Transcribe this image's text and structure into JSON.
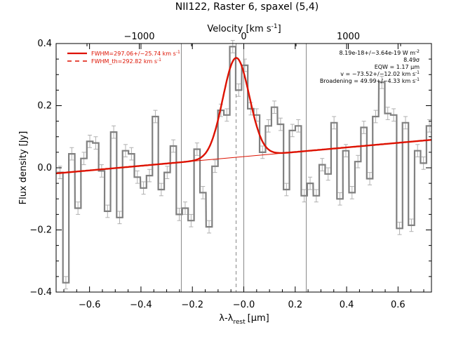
{
  "chart_data": {
    "type": "line",
    "title": "NII122, Raster 6, spaxel (5,4)",
    "xlabel": "λ-λ",
    "xlabel_sub": "rest",
    "xlabel_unit": "[μm]",
    "ylabel": "Flux density [Jy]",
    "top_axis_label": "Velocity [km s",
    "top_axis_label_sup": "-1",
    "top_axis_label_end": "]",
    "xlim": [
      -0.73,
      0.73
    ],
    "ylim": [
      -0.4,
      0.4
    ],
    "x_ticks": [
      -0.6,
      -0.4,
      -0.2,
      0.0,
      0.2,
      0.4,
      0.6
    ],
    "x_tick_labels": [
      "−0.6",
      "−0.4",
      "−0.2",
      "−0.0",
      "0.2",
      "0.4",
      "0.6"
    ],
    "y_ticks": [
      -0.4,
      -0.2,
      0.0,
      0.2,
      0.4
    ],
    "y_tick_labels": [
      "−0.4",
      "−0.2",
      "0.0",
      "0.2",
      "0.4"
    ],
    "top_ticks_velocity": [
      -1000,
      0,
      1000
    ],
    "top_tick_labels": [
      "−1000",
      "0",
      "1000"
    ],
    "top_axis_rest_wavelength_um": 121.9,
    "vertical_lines_x": [
      -0.243,
      0.243
    ],
    "center_dashed_x": -0.03,
    "zero_line_x": 0.0,
    "legend": {
      "position": "top-left",
      "entries": [
        {
          "label": "FWHM=297.06+/−25.74 km s",
          "sup": "-1",
          "style": "solid",
          "color": "#dd1100"
        },
        {
          "label": "FWHM_th=292.82 km s",
          "sup": "-1",
          "style": "dashed",
          "color": "#dd1100"
        }
      ]
    },
    "annotations": [
      {
        "text": "8.19e-18+/−3.64e-19 W m",
        "sup": "-2"
      },
      {
        "text": "8.49σ",
        "sup": ""
      },
      {
        "text": "EQW = 1.17 μm",
        "sup": ""
      },
      {
        "text": "v = −73.52+/−12.02 km s",
        "sup": "-1"
      },
      {
        "text": "Broadening = 49.99+/−4.33 km s",
        "sup": "-1"
      }
    ],
    "spectrum": {
      "name": "data",
      "color": "#808080",
      "bin_width": 0.0232,
      "x": [
        -0.715,
        -0.692,
        -0.669,
        -0.645,
        -0.622,
        -0.599,
        -0.576,
        -0.553,
        -0.53,
        -0.506,
        -0.483,
        -0.46,
        -0.437,
        -0.414,
        -0.39,
        -0.367,
        -0.344,
        -0.321,
        -0.298,
        -0.274,
        -0.251,
        -0.228,
        -0.205,
        -0.182,
        -0.159,
        -0.135,
        -0.112,
        -0.089,
        -0.066,
        -0.043,
        -0.02,
        0.004,
        0.027,
        0.05,
        0.073,
        0.096,
        0.119,
        0.143,
        0.166,
        0.189,
        0.212,
        0.235,
        0.258,
        0.282,
        0.305,
        0.328,
        0.351,
        0.374,
        0.397,
        0.421,
        0.444,
        0.467,
        0.49,
        0.513,
        0.537,
        0.56,
        0.583,
        0.606,
        0.629,
        0.652,
        0.676,
        0.699,
        0.722
      ],
      "y": [
        -0.015,
        -0.37,
        0.045,
        -0.13,
        0.03,
        0.085,
        0.08,
        -0.01,
        -0.14,
        0.115,
        -0.16,
        0.055,
        0.045,
        -0.03,
        -0.065,
        -0.025,
        0.165,
        -0.07,
        -0.015,
        0.07,
        -0.15,
        -0.13,
        -0.17,
        0.06,
        -0.08,
        -0.19,
        0.005,
        0.185,
        0.17,
        0.39,
        0.25,
        0.33,
        0.19,
        0.17,
        0.05,
        0.135,
        0.195,
        0.14,
        -0.07,
        0.12,
        0.135,
        -0.09,
        -0.05,
        -0.09,
        0.01,
        -0.02,
        0.145,
        -0.1,
        0.055,
        -0.08,
        0.02,
        0.13,
        -0.035,
        0.165,
        0.275,
        0.175,
        0.17,
        -0.195,
        0.145,
        -0.185,
        0.055,
        0.015,
        0.135
      ],
      "error": 0.02
    },
    "continuum": {
      "color": "#dd1100",
      "x": [
        -0.73,
        0.73
      ],
      "y": [
        -0.018,
        0.09
      ]
    },
    "fit": {
      "name": "fit",
      "color": "#dd1100",
      "center": -0.03,
      "fwhm": 0.121,
      "peak": 0.32
    }
  }
}
